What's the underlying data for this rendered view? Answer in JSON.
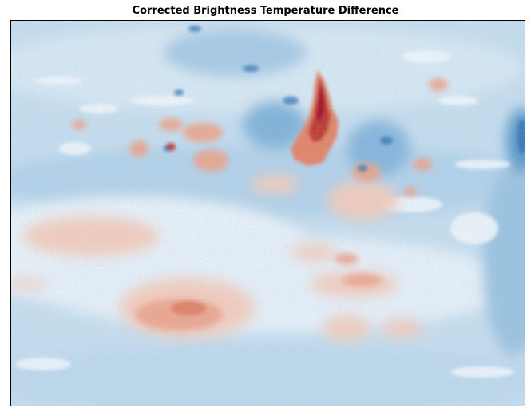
{
  "figure": {
    "title": "Corrected Brightness Temperature Difference"
  },
  "image": {
    "description_kind": "satellite-field-map",
    "colormap": "RdBu_r",
    "colors": {
      "deep_blue": "#2166ac",
      "mid_blue": "#6fa9d2",
      "light_blue": "#c6dcec",
      "near_white": "#f4f4f6",
      "light_red": "#f6c3ab",
      "mid_red": "#e58267",
      "deep_red": "#b2182b"
    }
  }
}
